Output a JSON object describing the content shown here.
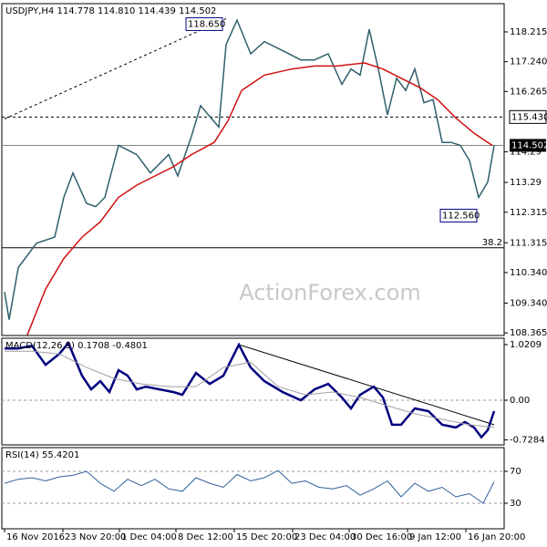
{
  "chart_data": [
    {
      "type": "line",
      "title": "USDJPY,H4  114.778 114.810 114.439 114.502",
      "watermark": "ActionForex.com",
      "grid": false,
      "xlim": [
        -1.5,
        274
      ],
      "ylim": [
        108.28,
        119.14
      ],
      "yticks": [
        118.215,
        {
          "value": 117.24,
          "label": "117.240"
        },
        116.265,
        114.29,
        113.29,
        112.315,
        111.315,
        {
          "value": 110.34,
          "label": "110.340"
        },
        {
          "value": 109.34,
          "label": "109.340"
        },
        108.365
      ],
      "series": [
        {
          "color": "#2f5f6b",
          "x": [
            0,
            2.5,
            7.5,
            17.5,
            27.5,
            32.5,
            37.5,
            45,
            50,
            55,
            62.5,
            72.5,
            80,
            90,
            95,
            102.5,
            107.5,
            117.5,
            121.5,
            127.5,
            135,
            142.5,
            152.5,
            162.5,
            170,
            177.5,
            185,
            190,
            195,
            200,
            205,
            210,
            215,
            220,
            225,
            230,
            235,
            240,
            245,
            250,
            255,
            260,
            265,
            268.5
          ],
          "values": [
            109.7,
            108.8,
            110.5,
            111.3,
            111.5,
            112.8,
            113.6,
            112.6,
            112.5,
            112.8,
            114.5,
            114.2,
            113.6,
            114.2,
            113.5,
            114.8,
            115.8,
            115.1,
            117.8,
            118.6,
            117.5,
            117.9,
            117.6,
            117.3,
            117.3,
            117.5,
            116.5,
            117.0,
            116.8,
            118.3,
            117.0,
            115.5,
            116.7,
            116.3,
            117.0,
            115.9,
            116.0,
            114.6,
            114.6,
            114.5,
            114.0,
            112.8,
            113.3,
            114.502
          ]
        },
        {
          "color": "#d01010",
          "x": [
            12.5,
            22.5,
            32.5,
            42.5,
            52.5,
            62.5,
            72.5,
            82.5,
            92.5,
            102.5,
            115,
            122.5,
            130,
            142.5,
            157.5,
            170,
            182.5,
            197.5,
            207.5,
            217.5,
            227.5,
            237.5,
            247.5,
            257.5,
            267.5
          ],
          "values": [
            108.3,
            109.8,
            110.8,
            111.5,
            112.0,
            112.8,
            113.2,
            113.5,
            113.8,
            114.2,
            114.6,
            115.3,
            116.3,
            116.8,
            117.0,
            117.1,
            117.1,
            117.2,
            117.0,
            116.7,
            116.4,
            116.0,
            115.4,
            114.9,
            114.5
          ]
        }
      ],
      "trendline": {
        "x": [
          0,
          121.5
        ],
        "values": [
          115.37,
          118.65
        ],
        "color": "#000000"
      },
      "annotations": [
        {
          "x": 121.5,
          "value": 118.65,
          "label": "118.650"
        },
        {
          "x": 261,
          "value": 112.56,
          "label": "112.560"
        }
      ],
      "levels": [
        {
          "value": 115.43,
          "label": "115.430"
        }
      ],
      "last_price": 114.502,
      "fib_price": 111.15,
      "fib_ratio": "38.2"
    },
    {
      "type": "line",
      "title": "MACD(12,26,9) 0.1708 -0.4801",
      "xlim": [
        -1.5,
        274
      ],
      "ylim": [
        -0.82,
        1.138
      ],
      "yticks": [
        1.0209,
        {
          "value": 0,
          "label": "0.00"
        },
        -0.7284
      ],
      "zero_line": true,
      "series": [
        {
          "color": "#000080",
          "width": 2.5,
          "x": [
            0,
            7.5,
            15,
            22.5,
            30,
            35,
            42.5,
            47.5,
            52.5,
            57.5,
            62.5,
            67.5,
            72.5,
            77.5,
            85,
            92.5,
            97.5,
            105,
            112.5,
            120,
            128.5,
            135,
            142.5,
            152.5,
            162.5,
            170,
            177.5,
            185,
            190,
            195,
            202.5,
            207.5,
            212.5,
            217.5,
            225,
            232.5,
            240,
            247.5,
            252.5,
            257.5,
            261.5,
            265,
            268.5
          ],
          "values": [
            0.95,
            0.95,
            1.0,
            0.65,
            0.85,
            1.05,
            0.45,
            0.2,
            0.35,
            0.15,
            0.55,
            0.45,
            0.2,
            0.25,
            0.2,
            0.15,
            0.1,
            0.5,
            0.3,
            0.45,
            1.02,
            0.6,
            0.35,
            0.15,
            0.0,
            0.2,
            0.3,
            0.05,
            -0.15,
            0.1,
            0.25,
            0.05,
            -0.45,
            -0.45,
            -0.15,
            -0.2,
            -0.45,
            -0.5,
            -0.4,
            -0.5,
            -0.68,
            -0.55,
            -0.2
          ]
        },
        {
          "color": "#a0a0a0",
          "width": 1,
          "x": [
            0,
            15,
            30,
            45,
            60,
            75,
            90,
            105,
            120,
            135,
            150,
            165,
            180,
            195,
            210,
            225,
            240,
            255,
            268.5
          ],
          "values": [
            0.9,
            0.9,
            0.85,
            0.6,
            0.4,
            0.3,
            0.25,
            0.25,
            0.6,
            0.7,
            0.25,
            0.1,
            0.15,
            0.05,
            -0.1,
            -0.25,
            -0.35,
            -0.45,
            -0.5
          ]
        }
      ],
      "trendline": {
        "x": [
          128.5,
          268.5
        ],
        "values": [
          1.02,
          -0.45
        ],
        "color": "#000000"
      }
    },
    {
      "type": "line",
      "title": "RSI(14) 55.4201",
      "xlim": [
        -1.5,
        274
      ],
      "ylim": [
        -2,
        99.7
      ],
      "yticks": [
        70,
        30
      ],
      "grid": true,
      "xticks": [
        {
          "value": 0,
          "label": "16 Nov 2016"
        },
        {
          "value": 32,
          "label": "23 Nov 20:00"
        },
        {
          "value": 63,
          "label": "1 Dec 04:00"
        },
        {
          "value": 94,
          "label": "8 Dec 12:00"
        },
        {
          "value": 126,
          "label": "15 Dec 20:00"
        },
        {
          "value": 158,
          "label": "23 Dec 04:00"
        },
        {
          "value": 189,
          "label": "30 Dec 16:00"
        },
        {
          "value": 221,
          "label": "9 Jan 12:00"
        },
        {
          "value": 253,
          "label": "16 Jan 20:00"
        }
      ],
      "series": [
        {
          "color": "#2f5f9b",
          "width": 1,
          "x": [
            0,
            7.5,
            15,
            22.5,
            30,
            37.5,
            45,
            52.5,
            60,
            67.5,
            75,
            82.5,
            90,
            97.5,
            105,
            112.5,
            120,
            127.5,
            135,
            142.5,
            150,
            157.5,
            165,
            172.5,
            180,
            187.5,
            195,
            202.5,
            210,
            217.5,
            225,
            232.5,
            240,
            247.5,
            255,
            262.5,
            268.5
          ],
          "values": [
            55,
            60,
            62,
            58,
            63,
            65,
            70,
            55,
            45,
            60,
            52,
            60,
            48,
            45,
            62,
            55,
            50,
            66,
            58,
            62,
            71,
            55,
            58,
            50,
            48,
            52,
            40,
            48,
            58,
            38,
            55,
            45,
            50,
            38,
            42,
            30,
            57
          ]
        }
      ]
    }
  ]
}
